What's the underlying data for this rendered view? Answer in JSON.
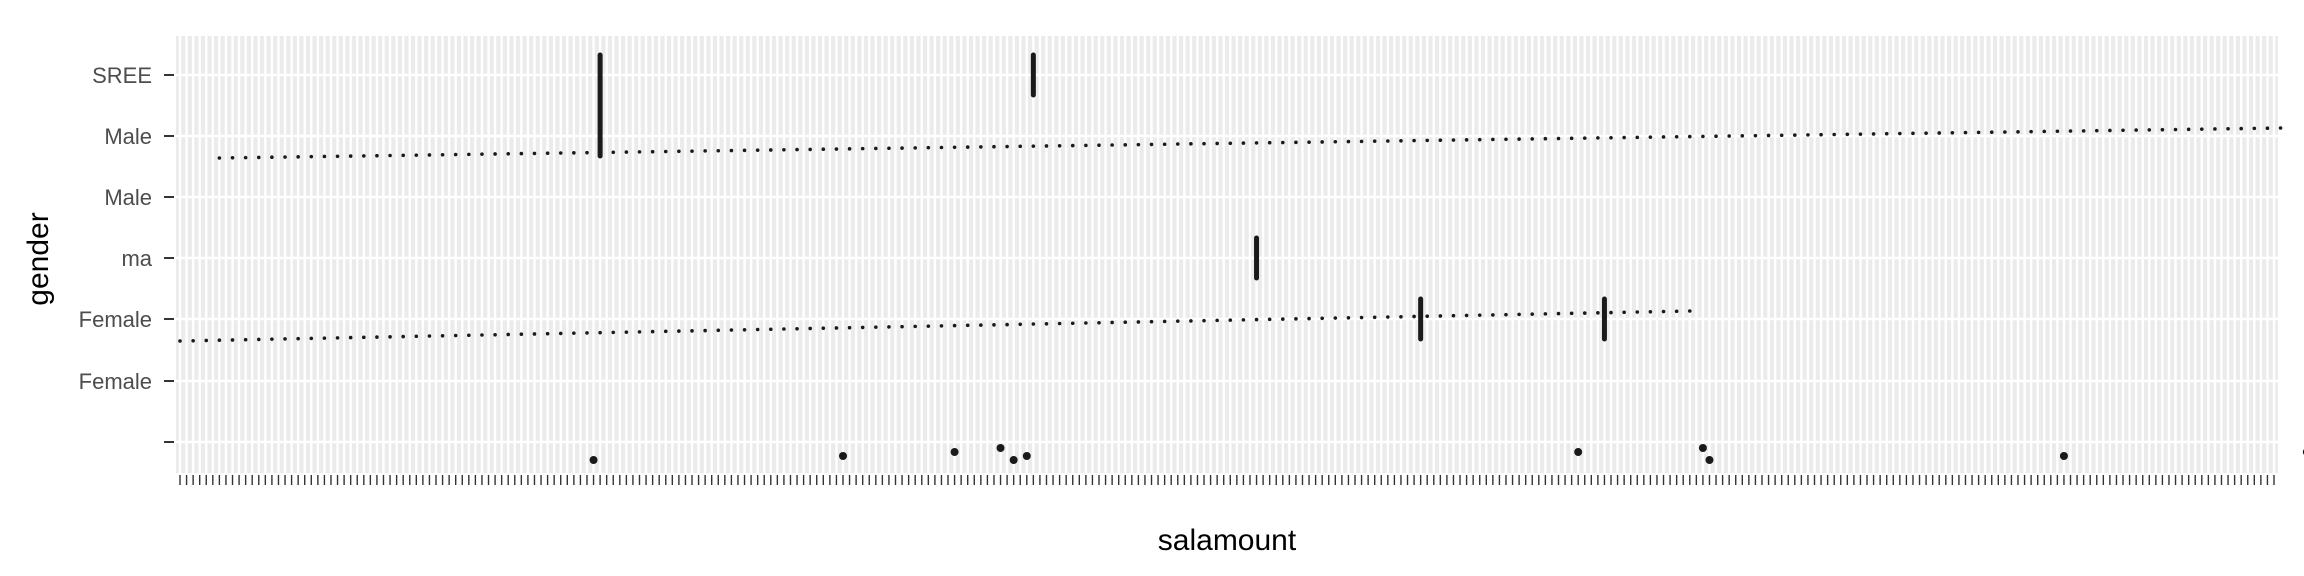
{
  "chart_data": {
    "type": "scatter",
    "title": "",
    "xlabel": "salamount",
    "ylabel": "gender",
    "y_categories": [
      "",
      "Female",
      "Female",
      "ma",
      "Male",
      "Male",
      "SREE"
    ],
    "x_axis": {
      "scale": "discrete",
      "category_count": 320,
      "tick_labels_overplotted": true
    },
    "grid": true,
    "panel_background": "#ebebeb",
    "grid_color": "#ffffff",
    "point_color": "#1a1a1a",
    "series": [
      {
        "name": "",
        "points": [
          {
            "x": 63,
            "y": ""
          },
          {
            "x": 101,
            "y": ""
          },
          {
            "x": 118,
            "y": ""
          },
          {
            "x": 125,
            "y": ""
          },
          {
            "x": 127,
            "y": ""
          },
          {
            "x": 129,
            "y": ""
          },
          {
            "x": 213,
            "y": ""
          },
          {
            "x": 232,
            "y": ""
          },
          {
            "x": 233,
            "y": ""
          },
          {
            "x": 287,
            "y": ""
          },
          {
            "x": 324,
            "y": ""
          }
        ]
      }
    ],
    "bands": [
      {
        "y": "Female",
        "x_range": [
          0,
          230
        ]
      },
      {
        "y": "Male",
        "x_range": [
          6,
          320
        ]
      }
    ],
    "stacks": [
      {
        "x": 64,
        "y": "Male",
        "y_top": "SREE"
      },
      {
        "x": 130,
        "y": "SREE",
        "y_top": "SREE"
      },
      {
        "x": 164,
        "y": "ma",
        "y_top": "ma"
      },
      {
        "x": 189,
        "y": "Female",
        "y_top": "Female"
      },
      {
        "x": 217,
        "y": "Female",
        "y_top": "Female"
      }
    ]
  }
}
